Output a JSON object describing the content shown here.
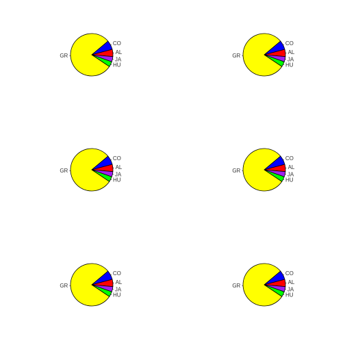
{
  "chart_data": [
    {
      "type": "pie",
      "categories": [
        "CO",
        "AL",
        "JA",
        "HU",
        "GR"
      ],
      "values": [
        7,
        5.5,
        4,
        4,
        79.5
      ],
      "colors": [
        "#0000ff",
        "#ff0000",
        "#a020f0",
        "#00ff00",
        "#ffff00"
      ]
    },
    {
      "type": "pie",
      "categories": [
        "CO",
        "AL",
        "JA",
        "HU",
        "GR"
      ],
      "values": [
        7,
        5.5,
        4,
        4,
        79.5
      ],
      "colors": [
        "#0000ff",
        "#ff0000",
        "#a020f0",
        "#00ff00",
        "#ffff00"
      ]
    },
    {
      "type": "pie",
      "categories": [
        "CO",
        "AL",
        "JA",
        "HU",
        "GR"
      ],
      "values": [
        7,
        5.5,
        4,
        4,
        79.5
      ],
      "colors": [
        "#0000ff",
        "#ff0000",
        "#a020f0",
        "#00ff00",
        "#ffff00"
      ]
    },
    {
      "type": "pie",
      "categories": [
        "CO",
        "AL",
        "JA",
        "HU",
        "GR"
      ],
      "values": [
        7,
        5.5,
        4,
        4,
        79.5
      ],
      "colors": [
        "#0000ff",
        "#ff0000",
        "#a020f0",
        "#00ff00",
        "#ffff00"
      ]
    },
    {
      "type": "pie",
      "categories": [
        "CO",
        "AL",
        "JA",
        "HU",
        "GR"
      ],
      "values": [
        7,
        5.5,
        4,
        4,
        79.5
      ],
      "colors": [
        "#0000ff",
        "#ff0000",
        "#a020f0",
        "#00ff00",
        "#ffff00"
      ]
    },
    {
      "type": "pie",
      "categories": [
        "CO",
        "AL",
        "JA",
        "HU",
        "GR"
      ],
      "values": [
        7,
        5.5,
        4,
        4,
        79.5
      ],
      "colors": [
        "#0000ff",
        "#ff0000",
        "#a020f0",
        "#00ff00",
        "#ffff00"
      ]
    }
  ]
}
